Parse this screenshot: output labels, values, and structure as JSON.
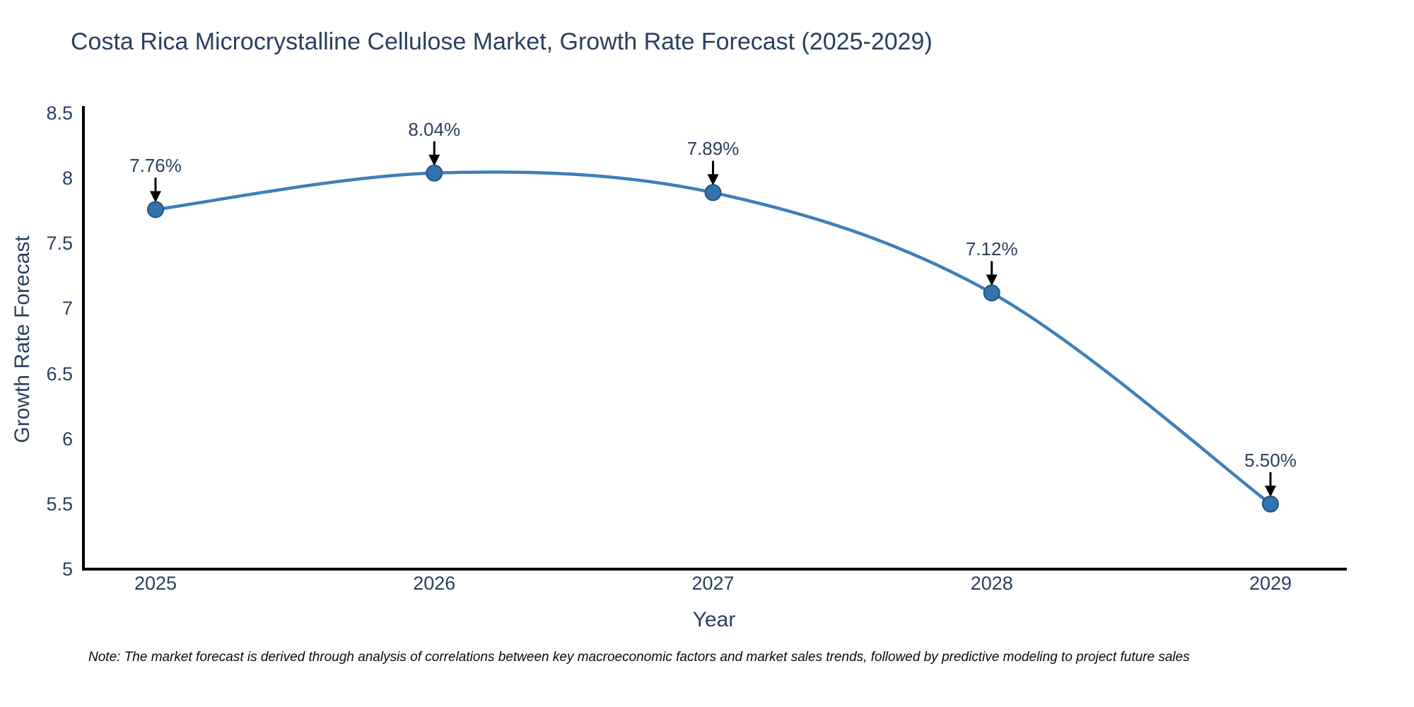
{
  "title": "Costa Rica Microcrystalline Cellulose Market, Growth Rate Forecast (2025-2029)",
  "note": "Note: The market forecast is derived through analysis of correlations between key macroeconomic factors and market sales trends, followed by predictive modeling to project future sales",
  "chart_data": {
    "type": "line",
    "curve": "spline",
    "x": [
      2025,
      2026,
      2027,
      2028,
      2029
    ],
    "x_labels": [
      "2025",
      "2026",
      "2027",
      "2028",
      "2029"
    ],
    "values": [
      7.76,
      8.04,
      7.89,
      7.12,
      5.5
    ],
    "point_labels": [
      "7.76%",
      "8.04%",
      "7.89%",
      "7.12%",
      "5.50%"
    ],
    "title": "Costa Rica Microcrystalline Cellulose Market, Growth Rate Forecast (2025-2029)",
    "xlabel": "Year",
    "ylabel": "Growth Rate Forecast",
    "ylim": [
      5,
      8.5
    ],
    "yticks": [
      8.5,
      8,
      7.5,
      7,
      6.5,
      6,
      5.5,
      5
    ],
    "ytick_labels": [
      "8.5",
      "8",
      "7.5",
      "7",
      "6.5",
      "6",
      "5.5",
      "5"
    ],
    "grid": false,
    "legend": "none",
    "annotations_have_arrows": true
  },
  "colors": {
    "line": "#3f7fb8",
    "marker_fill": "#3273ac",
    "marker_edge": "#1f5480",
    "axis": "#000000",
    "text": "#2a3f5f",
    "arrow": "#000000",
    "background": "#ffffff"
  }
}
